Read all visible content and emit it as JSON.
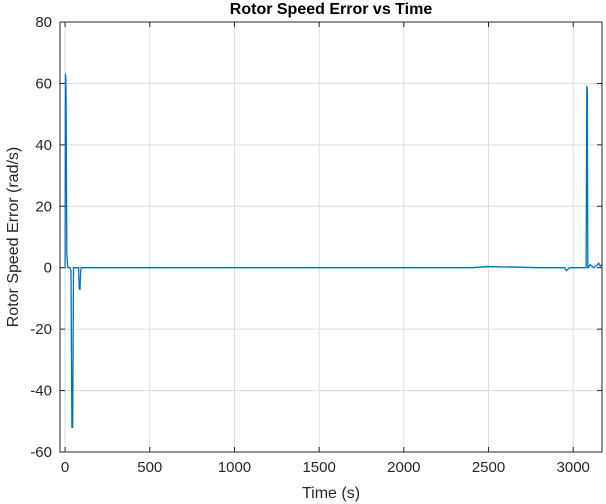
{
  "chart_data": {
    "type": "line",
    "title": "Rotor Speed Error vs Time",
    "xlabel": "Time (s)",
    "ylabel": "Rotor Speed Error (rad/s)",
    "xlim": [
      -30,
      3170
    ],
    "ylim": [
      -60,
      80
    ],
    "xticks": [
      0,
      500,
      1000,
      1500,
      2000,
      2500,
      3000
    ],
    "yticks": [
      -60,
      -40,
      -20,
      0,
      20,
      40,
      60,
      80
    ],
    "grid": true,
    "series": [
      {
        "color": "#0072bd",
        "x": [
          0,
          2,
          4,
          6,
          8,
          10,
          14,
          18,
          22,
          28,
          35,
          40,
          45,
          50,
          55,
          60,
          70,
          80,
          84,
          88,
          92,
          95,
          100,
          200,
          500,
          1000,
          1500,
          2000,
          2400,
          2500,
          2800,
          2950,
          2960,
          2980,
          3000,
          3050,
          3070,
          3076,
          3080,
          3083,
          3086,
          3090,
          3100,
          3120,
          3140,
          3150,
          3160,
          3170
        ],
        "y": [
          0,
          63,
          62,
          55,
          35,
          5,
          1,
          0,
          0,
          0,
          -1,
          -52,
          -52,
          0,
          0,
          0,
          0,
          0,
          -7,
          -7,
          -1,
          0,
          0,
          0,
          0,
          0,
          0,
          0,
          0,
          0.4,
          0,
          0,
          -1,
          0,
          0,
          0,
          0,
          0,
          59,
          58,
          0,
          0,
          1,
          0,
          0.8,
          1.5,
          0.5,
          1
        ]
      }
    ]
  }
}
